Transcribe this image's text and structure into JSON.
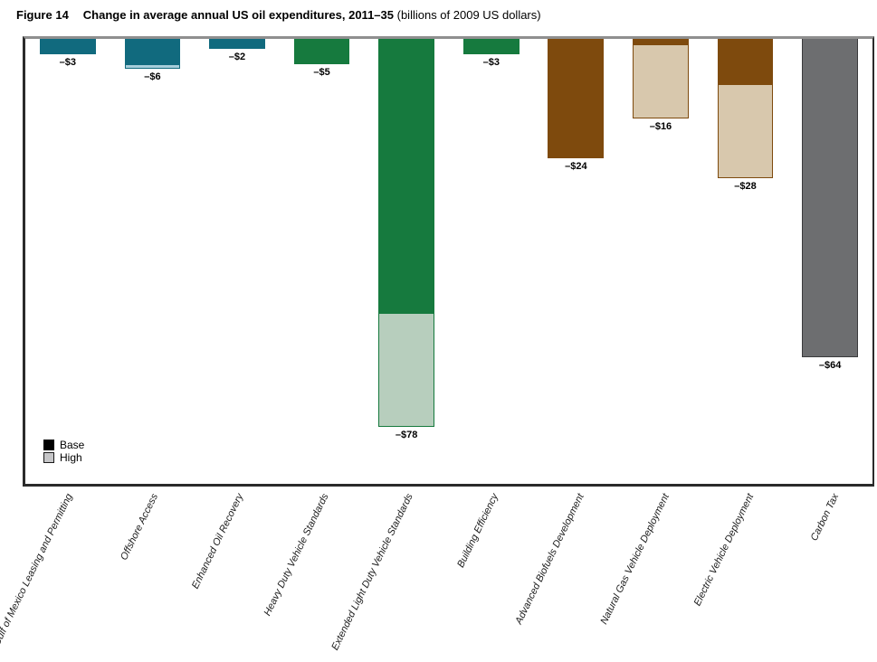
{
  "figure": {
    "label": "Figure 14",
    "title": "Change in average annual US oil expenditures, 2011–35",
    "subtitle": "(billions of 2009 US dollars)"
  },
  "legend": {
    "base_label": "Base",
    "high_label": "High"
  },
  "palette": {
    "teal": {
      "base": "#116a7e",
      "high": "#a8cedb"
    },
    "green": {
      "base": "#167a3e",
      "high": "#b7cebd"
    },
    "brown": {
      "base": "#7e4a0d",
      "high": "#d8c8ad"
    },
    "gray": {
      "base": "#6d6e70",
      "high": "#c6c6c8"
    },
    "gray_bar_border": "#3a3a3c",
    "legend_base": "#000000",
    "legend_high": "#c6c6c8",
    "frame_dark": "#2b2b2b",
    "frame_top": "#8f8f8f"
  },
  "chart_data": {
    "type": "bar",
    "stacked": true,
    "orientation": "vertical-negative",
    "title": "Change in average annual US oil expenditures, 2011–35",
    "unit": "billions of 2009 US dollars",
    "grid": false,
    "legend_position": "bottom-left-inside",
    "y_axis": {
      "max": 0,
      "min": -90,
      "ticks_visible": false
    },
    "categories": [
      "Gulf of Mexico Leasing and Permitting",
      "Offshore Access",
      "Enhanced Oil Recovery",
      "Heavy Duty Vehicle Standards",
      "Extended Light Duty Vehicle Standards",
      "Building Efficiency",
      "Advanced Biofuels Development",
      "Natural Gas Vehicle Deployment",
      "Electric Vehicle Deployment",
      "Carbon Tax"
    ],
    "series": [
      {
        "name": "Base",
        "values": [
          -3,
          -5,
          -2,
          -5,
          -55,
          -3,
          -24,
          -1,
          -9,
          -64
        ]
      },
      {
        "name": "High",
        "values": [
          -3,
          -6,
          -2,
          -5,
          -78,
          -3,
          -24,
          -16,
          -28,
          -64
        ]
      }
    ],
    "data_labels": [
      "–$3",
      "–$6",
      "–$2",
      "–$5",
      "–$78",
      "–$3",
      "–$24",
      "–$16",
      "–$28",
      "–$64"
    ],
    "bar_colors": [
      "teal",
      "teal",
      "teal",
      "green",
      "green",
      "green",
      "brown",
      "brown",
      "brown",
      "gray"
    ]
  }
}
